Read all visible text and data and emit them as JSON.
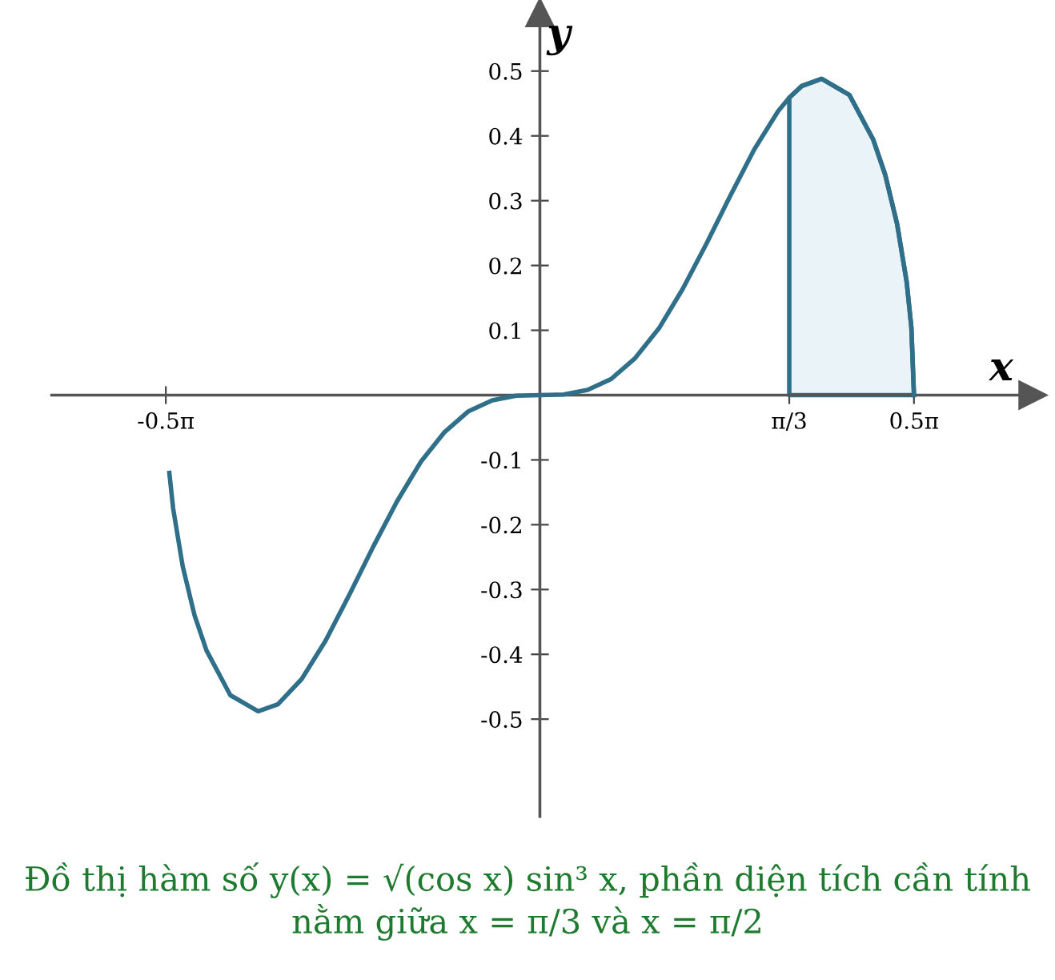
{
  "chart_data": {
    "type": "line",
    "xlabel": "x",
    "ylabel": "y",
    "xlim": [
      -2.05,
      2.07
    ],
    "ylim": [
      -0.65,
      0.59
    ],
    "xticks": [
      {
        "value": -1.5708,
        "label": "-0.5π"
      },
      {
        "value": 1.0472,
        "label": "π/3"
      },
      {
        "value": 1.5708,
        "label": "0.5π"
      }
    ],
    "yticks": [
      -0.5,
      -0.4,
      -0.3,
      -0.2,
      -0.1,
      0.1,
      0.2,
      0.3,
      0.4,
      0.5
    ],
    "grid": false,
    "legend": false,
    "marker": "none",
    "line_style": "solid",
    "series": [
      {
        "type": "area",
        "color": "#eaf3f7",
        "x": [
          1.0472,
          1.1,
          1.183,
          1.3,
          1.4,
          1.45,
          1.5,
          1.54,
          1.56,
          1.5708
        ],
        "values": [
          0.459,
          0.477,
          0.488,
          0.463,
          0.394,
          0.34,
          0.264,
          0.175,
          0.104,
          0
        ]
      },
      {
        "color": "#2f6f8a",
        "x": [
          -1.556,
          -1.54,
          -1.5,
          -1.45,
          -1.4,
          -1.3,
          -1.183,
          -1.1,
          -1.0,
          -0.9,
          -0.8,
          -0.7,
          -0.6,
          -0.5,
          -0.4,
          -0.3,
          -0.2,
          -0.1,
          0,
          0.1,
          0.2,
          0.3,
          0.4,
          0.5,
          0.6,
          0.7,
          0.8,
          0.9,
          1.0,
          1.0472,
          1.1,
          1.183,
          1.3,
          1.4,
          1.45,
          1.5,
          1.54,
          1.56,
          1.5708
        ],
        "values": [
          -0.12,
          -0.175,
          -0.264,
          -0.34,
          -0.394,
          -0.463,
          -0.488,
          -0.477,
          -0.438,
          -0.379,
          -0.308,
          -0.234,
          -0.164,
          -0.103,
          -0.057,
          -0.025,
          -0.008,
          -0.001,
          0,
          0.001,
          0.008,
          0.025,
          0.057,
          0.103,
          0.164,
          0.234,
          0.308,
          0.379,
          0.438,
          0.459,
          0.477,
          0.488,
          0.463,
          0.394,
          0.34,
          0.264,
          0.175,
          0.104,
          0
        ]
      }
    ],
    "annotations": [
      "Đồ thị hàm số y(x) = √(cos x) sin³ x, phần diện tích cần tính nằm giữa x = π/3 và x = π/2"
    ]
  }
}
